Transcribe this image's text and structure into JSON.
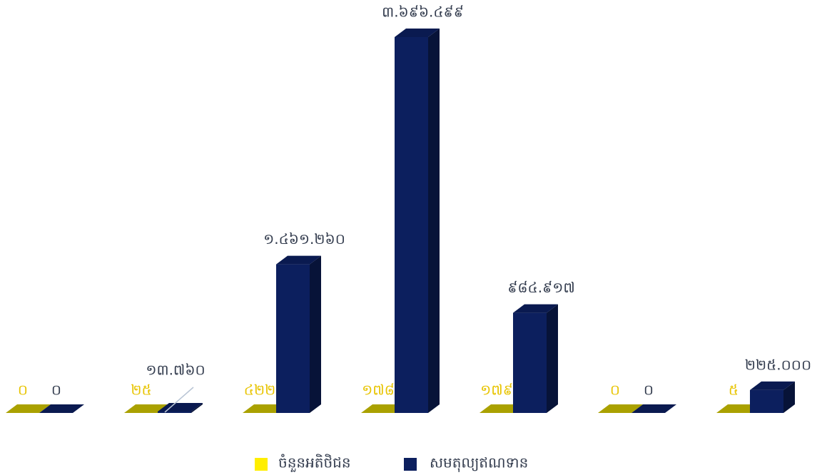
{
  "chart_data": {
    "type": "bar3d",
    "series": [
      {
        "name": "ចំនួនអតិថិជន",
        "color": "#c8bd00",
        "values": [
          0,
          25,
          422,
          178,
          179,
          0,
          5
        ],
        "value_labels": [
          "០",
          "២៥",
          "៤២២",
          "១៧៨",
          "១៧៩",
          "០",
          "៥"
        ]
      },
      {
        "name": "សមតុល្យឥណទាន",
        "color": "#0c1f5e",
        "values": [
          0,
          13760,
          1461260,
          3696499,
          984917,
          0,
          225000
        ],
        "value_labels": [
          "០",
          "១៣.៧៦០",
          "១.៤៦១.២៦០",
          "៣.៦៩៦.៤៩៩",
          "៩៨៤.៩១៧",
          "០",
          "២២៥.០០០"
        ]
      }
    ]
  }
}
